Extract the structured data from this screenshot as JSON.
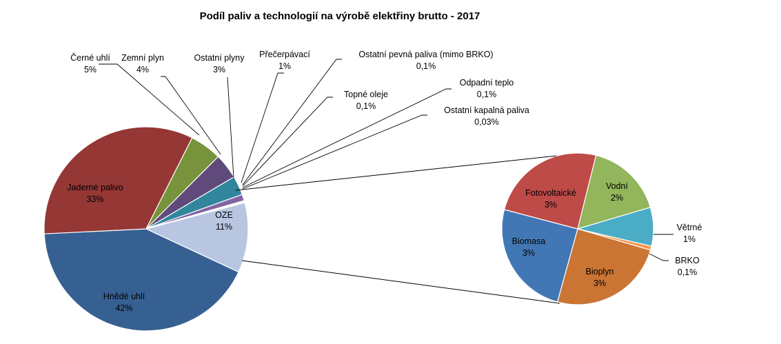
{
  "chart_data": [
    {
      "type": "pie",
      "title": "Podíl paliv a technologií na výrobě elektřiny brutto - 2017",
      "slices": [
        {
          "name": "Hnědé uhlí",
          "value": 42,
          "label": "42%",
          "color": "#376092"
        },
        {
          "name": "Jaderné palivo",
          "value": 33,
          "label": "33%",
          "color": "#953735"
        },
        {
          "name": "Černé uhlí",
          "value": 5,
          "label": "5%",
          "color": "#77933C"
        },
        {
          "name": "Zemní plyn",
          "value": 4,
          "label": "4%",
          "color": "#604A7B"
        },
        {
          "name": "Ostatní plyny",
          "value": 3,
          "label": "3%",
          "color": "#31859C"
        },
        {
          "name": "Přečerpávací",
          "value": 1,
          "label": "1%",
          "color": "#8064A2"
        },
        {
          "name": "Ostatní pevná paliva (mimo BRKO)",
          "value": 0.1,
          "label": "0,1%",
          "color": "#4F81BD"
        },
        {
          "name": "Topné oleje",
          "value": 0.1,
          "label": "0,1%",
          "color": "#C0504D"
        },
        {
          "name": "Odpadní teplo",
          "value": 0.1,
          "label": "0,1%",
          "color": "#9BBB59"
        },
        {
          "name": "Ostatní kapalná paliva",
          "value": 0.03,
          "label": "0,03%",
          "color": "#F79646"
        },
        {
          "name": "OZE",
          "value": 11,
          "label": "11%",
          "color": "#B9C6E2"
        }
      ]
    },
    {
      "type": "pie",
      "title": "",
      "slices": [
        {
          "name": "Vodní",
          "value": 2,
          "label": "2%",
          "color": "#93B55B"
        },
        {
          "name": "Větrné",
          "value": 1,
          "label": "1%",
          "color": "#4BACC6"
        },
        {
          "name": "BRKO",
          "value": 0.1,
          "label": "0,1%",
          "color": "#F79646"
        },
        {
          "name": "Bioplyn",
          "value": 3,
          "label": "3%",
          "color": "#CB7534"
        },
        {
          "name": "Biomasa",
          "value": 3,
          "label": "3%",
          "color": "#4277B5"
        },
        {
          "name": "Fotovoltaické",
          "value": 3,
          "label": "3%",
          "color": "#BE4B48"
        }
      ]
    }
  ]
}
